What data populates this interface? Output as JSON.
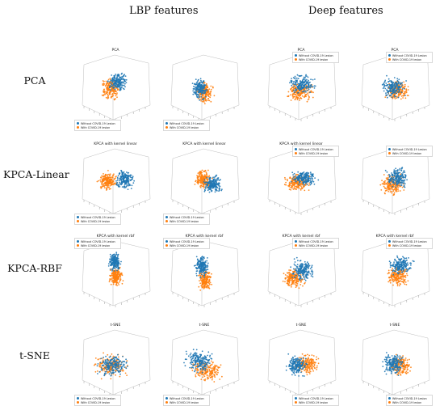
{
  "figure": {
    "column_headers": [
      "LBP features",
      "Deep features"
    ],
    "row_labels": [
      "PCA",
      "KPCA-Linear",
      "KPCA-RBF",
      "t-SNE"
    ],
    "colors": {
      "without": "#1f77b4",
      "with": "#ff7f0e"
    },
    "legend_labels": [
      "Without COVID-19 Lesion",
      "With COVID-19 lesion"
    ],
    "panel_titles": [
      [
        "PCA",
        "",
        "PCA",
        "PCA"
      ],
      [
        "KPCA with kernel linear",
        "KPCA with kernel linear",
        "KPCA with kernel linear",
        ""
      ],
      [
        "KPCA with kernel rbf",
        "KPCA with kernel rbf",
        "KPCA with kernel rbf",
        "KPCA with kernel rbf"
      ],
      [
        "t-SNE",
        "t-SNE",
        "t-SNE",
        "t-SNE"
      ]
    ]
  }
}
